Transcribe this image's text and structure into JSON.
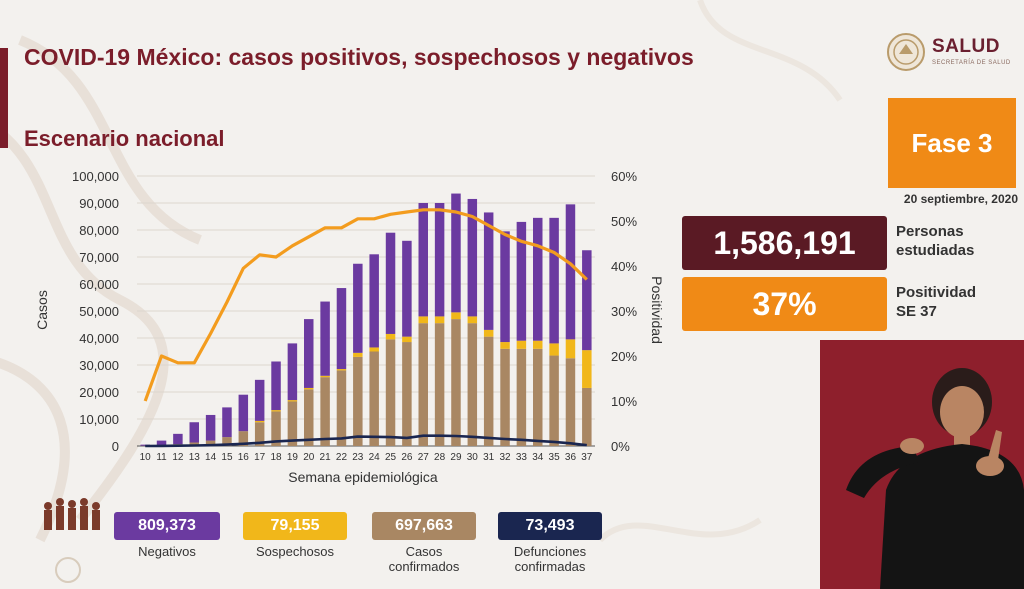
{
  "header": {
    "title": "COVID-19 México: casos positivos, sospechosos y negativos",
    "subtitle": "Escenario nacional"
  },
  "logo": {
    "name": "SALUD",
    "tagline": "SECRETARÍA DE SALUD",
    "icon": "eagle-emblem-icon"
  },
  "phase": {
    "label": "Fase 3",
    "color": "#f08a16"
  },
  "date": "20 septiembre, 2020",
  "metrics": {
    "studied": {
      "value": "1,586,191",
      "label_line1": "Personas",
      "label_line2": "estudiadas",
      "color": "#5a1a24"
    },
    "positivity": {
      "value": "37%",
      "label_line1": "Positividad",
      "label_line2": "SE 37",
      "color": "#f08a16"
    }
  },
  "summary": {
    "negatives": {
      "value": "809,373",
      "label": "Negativos",
      "color": "#6b3aa0"
    },
    "suspects": {
      "value": "79,155",
      "label": "Sospechosos",
      "color": "#f1b71a"
    },
    "confirmed": {
      "value": "697,663",
      "label_line1": "Casos",
      "label_line2": "confirmados",
      "color": "#a98763"
    },
    "deaths": {
      "value": "73,493",
      "label_line1": "Defunciones",
      "label_line2": "confirmadas",
      "color": "#1a2650"
    }
  },
  "chart_data": {
    "type": "bar",
    "stacked": true,
    "xlabel": "Semana epidemiológica",
    "ylabel": "Casos",
    "y2label": "Positividad",
    "ylim": [
      0,
      100000
    ],
    "y2lim": [
      0,
      60
    ],
    "yticks": [
      "0",
      "10,000",
      "20,000",
      "30,000",
      "40,000",
      "50,000",
      "60,000",
      "70,000",
      "80,000",
      "90,000",
      "100,000"
    ],
    "y2ticks": [
      "0%",
      "10%",
      "20%",
      "30%",
      "40%",
      "50%",
      "60%"
    ],
    "categories": [
      "10",
      "11",
      "12",
      "13",
      "14",
      "15",
      "16",
      "17",
      "18",
      "19",
      "20",
      "21",
      "22",
      "23",
      "24",
      "25",
      "26",
      "27",
      "28",
      "29",
      "30",
      "31",
      "32",
      "33",
      "34",
      "35",
      "36",
      "37"
    ],
    "series": [
      {
        "kind": "bar",
        "color": "#a98763",
        "values": [
          100,
          300,
          700,
          1300,
          2000,
          3300,
          5500,
          8800,
          12800,
          16500,
          21000,
          25500,
          28000,
          33000,
          35000,
          39500,
          38500,
          45500,
          45500,
          47000,
          45500,
          40500,
          36000,
          36000,
          36000,
          33500,
          32500,
          21500
        ]
      },
      {
        "kind": "bar",
        "color": "#f1b71a",
        "values": [
          0,
          0,
          0,
          0,
          0,
          0,
          0,
          500,
          500,
          500,
          500,
          500,
          500,
          1500,
          1500,
          2000,
          2000,
          2500,
          2500,
          2500,
          2500,
          2500,
          2500,
          3000,
          3000,
          4500,
          7000,
          14000
        ]
      },
      {
        "kind": "bar",
        "color": "#6b3aa0",
        "values": [
          400,
          1700,
          3800,
          7500,
          9500,
          11000,
          13500,
          15200,
          18000,
          21000,
          25500,
          27500,
          30000,
          33000,
          34500,
          37500,
          35500,
          42000,
          42000,
          44000,
          43500,
          43500,
          41000,
          44000,
          45500,
          46500,
          50000,
          37000
        ]
      },
      {
        "kind": "line",
        "axis": "right",
        "color": "#f39c1e",
        "values": [
          10,
          20,
          18.5,
          18.5,
          25,
          32,
          39.5,
          42.5,
          42,
          44.5,
          46.5,
          48.5,
          48.5,
          50.5,
          50.5,
          51.5,
          52,
          52.5,
          52.5,
          52,
          51,
          49,
          47,
          45.5,
          44.5,
          43,
          40.5,
          37
        ]
      },
      {
        "kind": "line",
        "axis": "left",
        "color": "#1a2650",
        "values": [
          0,
          50,
          100,
          200,
          300,
          500,
          800,
          1200,
          1700,
          2000,
          2300,
          2600,
          2800,
          3500,
          3400,
          3300,
          3000,
          3800,
          3800,
          3700,
          3400,
          3000,
          2600,
          2300,
          1900,
          1500,
          1000,
          300
        ]
      }
    ]
  }
}
